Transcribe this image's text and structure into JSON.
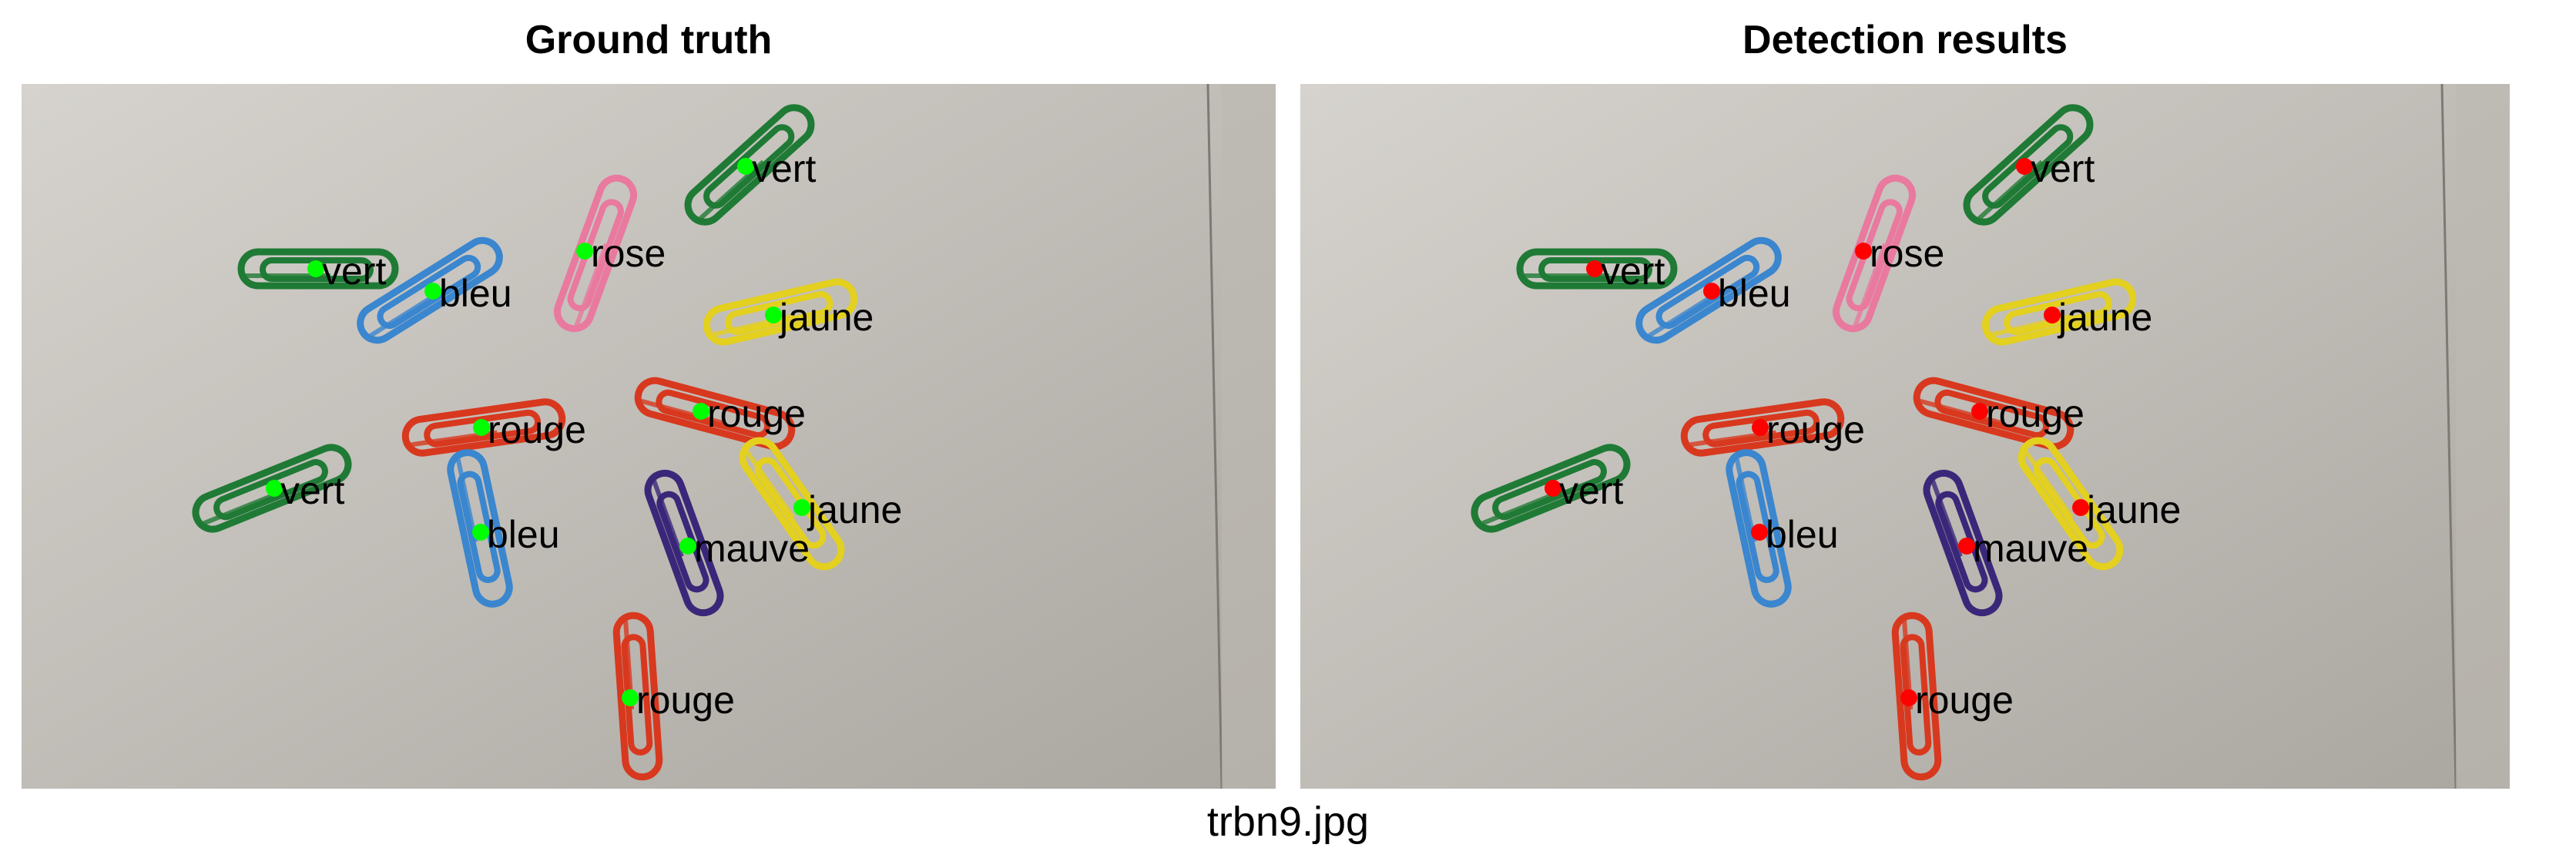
{
  "panels": {
    "left_title": "Ground truth",
    "right_title": "Detection results"
  },
  "caption": "trbn9.jpg",
  "colors": {
    "ground_truth_marker": "#00ff00",
    "detection_marker": "#ff0000",
    "paper": "#c9c6c1",
    "paperclip_green": "#1f7a35",
    "paperclip_blue": "#3a86cf",
    "paperclip_pink": "#e9799f",
    "paperclip_yellow": "#e3d01f",
    "paperclip_red": "#d8381e",
    "paperclip_mauve": "#3a2779"
  },
  "annotations": [
    {
      "label": "vert",
      "clip": "green"
    },
    {
      "label": "rose",
      "clip": "pink"
    },
    {
      "label": "vert",
      "clip": "green"
    },
    {
      "label": "bleu",
      "clip": "blue"
    },
    {
      "label": "jaune",
      "clip": "yellow"
    },
    {
      "label": "rouge",
      "clip": "red"
    },
    {
      "label": "rouge",
      "clip": "red"
    },
    {
      "label": "vert",
      "clip": "green"
    },
    {
      "label": "jaune",
      "clip": "yellow"
    },
    {
      "label": "bleu",
      "clip": "blue"
    },
    {
      "label": "mauve",
      "clip": "mauve"
    },
    {
      "label": "rouge",
      "clip": "red"
    }
  ]
}
